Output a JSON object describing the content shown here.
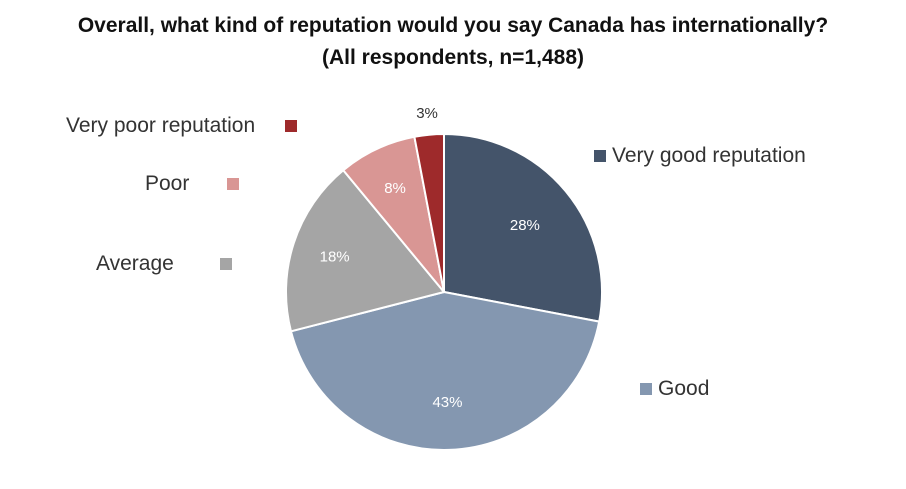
{
  "chart_data": {
    "type": "pie",
    "title": "Overall, what kind of reputation would you say Canada has internationally?",
    "subtitle": "(All respondents, n=1,488)",
    "slices": [
      {
        "name": "Very good reputation",
        "value": 28,
        "label": "28%",
        "color": "#44546a"
      },
      {
        "name": "Good",
        "value": 43,
        "label": "43%",
        "color": "#8497b0"
      },
      {
        "name": "Average",
        "value": 18,
        "label": "18%",
        "color": "#a5a5a5"
      },
      {
        "name": "Poor",
        "value": 8,
        "label": "8%",
        "color": "#d99694"
      },
      {
        "name": "Very poor reputation",
        "value": 3,
        "label": "3%",
        "color": "#9e2a2b"
      }
    ]
  }
}
